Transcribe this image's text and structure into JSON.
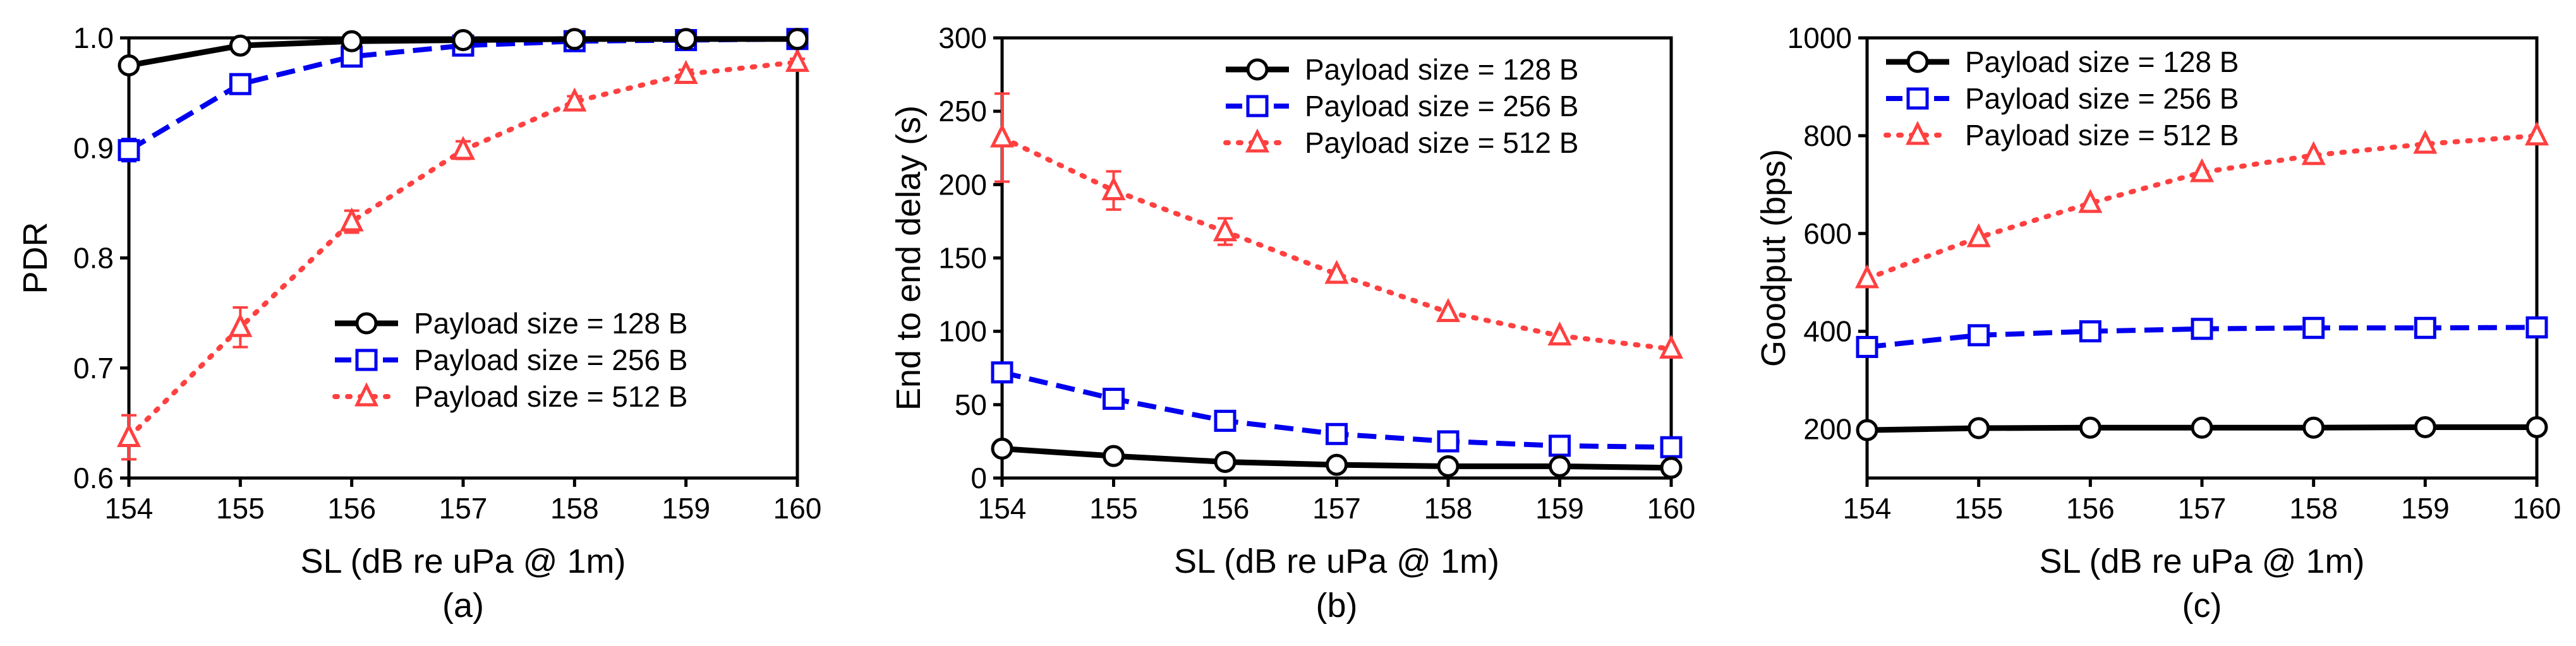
{
  "figure": {
    "panels": [
      "(a)",
      "(b)",
      "(c)"
    ]
  },
  "chart_data": [
    {
      "type": "line",
      "panel_label": "(a)",
      "xlabel": "SL (dB re uPa @ 1m)",
      "ylabel": "PDR",
      "x": [
        154,
        155,
        156,
        157,
        158,
        159,
        160
      ],
      "xlim": [
        154,
        160
      ],
      "ylim": [
        0.6,
        1.0
      ],
      "xticks": [
        "154",
        "155",
        "156",
        "157",
        "158",
        "159",
        "160"
      ],
      "yticks": [
        "0.6",
        "0.7",
        "0.8",
        "0.9",
        "1.0"
      ],
      "ytick_values": [
        0.6,
        0.7,
        0.8,
        0.9,
        1.0
      ],
      "grid": false,
      "legend_position": "bottom-right",
      "series": [
        {
          "name": "Payload size = 128 B",
          "values": [
            0.975,
            0.993,
            0.997,
            0.998,
            0.999,
            0.999,
            0.999
          ],
          "errors": [
            0,
            0,
            0,
            0,
            0,
            0,
            0
          ],
          "color": "#000000",
          "line_style": "solid",
          "marker": "circle"
        },
        {
          "name": "Payload size = 256 B",
          "values": [
            0.898,
            0.958,
            0.983,
            0.993,
            0.997,
            0.998,
            0.999
          ],
          "errors": [
            0.01,
            0,
            0,
            0,
            0,
            0,
            0
          ],
          "color": "#0000ee",
          "line_style": "dashed",
          "marker": "square"
        },
        {
          "name": "Payload size = 512 B",
          "values": [
            0.637,
            0.737,
            0.833,
            0.898,
            0.942,
            0.967,
            0.978
          ],
          "errors": [
            0.02,
            0.018,
            0.01,
            0.008,
            0.005,
            0.004,
            0.003
          ],
          "color": "#ff4040",
          "line_style": "dotted",
          "marker": "triangle"
        }
      ]
    },
    {
      "type": "line",
      "panel_label": "(b)",
      "xlabel": "SL (dB re uPa @ 1m)",
      "ylabel": "End to end delay (s)",
      "x": [
        154,
        155,
        156,
        157,
        158,
        159,
        160
      ],
      "xlim": [
        154,
        160
      ],
      "ylim": [
        0,
        300
      ],
      "xticks": [
        "154",
        "155",
        "156",
        "157",
        "158",
        "159",
        "160"
      ],
      "yticks": [
        "0",
        "50",
        "100",
        "150",
        "200",
        "250",
        "300"
      ],
      "ytick_values": [
        0,
        50,
        100,
        150,
        200,
        250,
        300
      ],
      "grid": false,
      "legend_position": "top-right",
      "series": [
        {
          "name": "Payload size = 128 B",
          "values": [
            20,
            15,
            11,
            9,
            8,
            8,
            7
          ],
          "errors": [
            0,
            0,
            0,
            0,
            0,
            0,
            0
          ],
          "color": "#000000",
          "line_style": "solid",
          "marker": "circle"
        },
        {
          "name": "Payload size = 256 B",
          "values": [
            72,
            54,
            39,
            30,
            25,
            22,
            21
          ],
          "errors": [
            0,
            0,
            0,
            0,
            0,
            0,
            0
          ],
          "color": "#0000ee",
          "line_style": "dashed",
          "marker": "square"
        },
        {
          "name": "Payload size = 512 B",
          "values": [
            232,
            196,
            168,
            139,
            113,
            97,
            88
          ],
          "errors": [
            30,
            13,
            9,
            0,
            0,
            0,
            0
          ],
          "color": "#ff4040",
          "line_style": "dotted",
          "marker": "triangle"
        }
      ]
    },
    {
      "type": "line",
      "panel_label": "(c)",
      "xlabel": "SL (dB re uPa @ 1m)",
      "ylabel": "Goodput (bps)",
      "x": [
        154,
        155,
        156,
        157,
        158,
        159,
        160
      ],
      "xlim": [
        154,
        160
      ],
      "ylim": [
        100,
        1000
      ],
      "xticks": [
        "154",
        "155",
        "156",
        "157",
        "158",
        "159",
        "160"
      ],
      "yticks": [
        "200",
        "400",
        "600",
        "800",
        "1000"
      ],
      "ytick_values": [
        200,
        400,
        600,
        800,
        1000
      ],
      "grid": false,
      "legend_position": "top-left",
      "series": [
        {
          "name": "Payload size = 128 B",
          "values": [
            198,
            202,
            203,
            203,
            203,
            204,
            204
          ],
          "errors": [
            0,
            0,
            0,
            0,
            0,
            0,
            0
          ],
          "color": "#000000",
          "line_style": "solid",
          "marker": "circle"
        },
        {
          "name": "Payload size = 256 B",
          "values": [
            368,
            392,
            400,
            405,
            407,
            407,
            408
          ],
          "errors": [
            0,
            0,
            0,
            0,
            0,
            0,
            0
          ],
          "color": "#0000ee",
          "line_style": "dashed",
          "marker": "square"
        },
        {
          "name": "Payload size = 512 B",
          "values": [
            508,
            592,
            662,
            725,
            760,
            783,
            800
          ],
          "errors": [
            0,
            0,
            0,
            0,
            0,
            0,
            0
          ],
          "color": "#ff4040",
          "line_style": "dotted",
          "marker": "triangle"
        }
      ]
    }
  ]
}
